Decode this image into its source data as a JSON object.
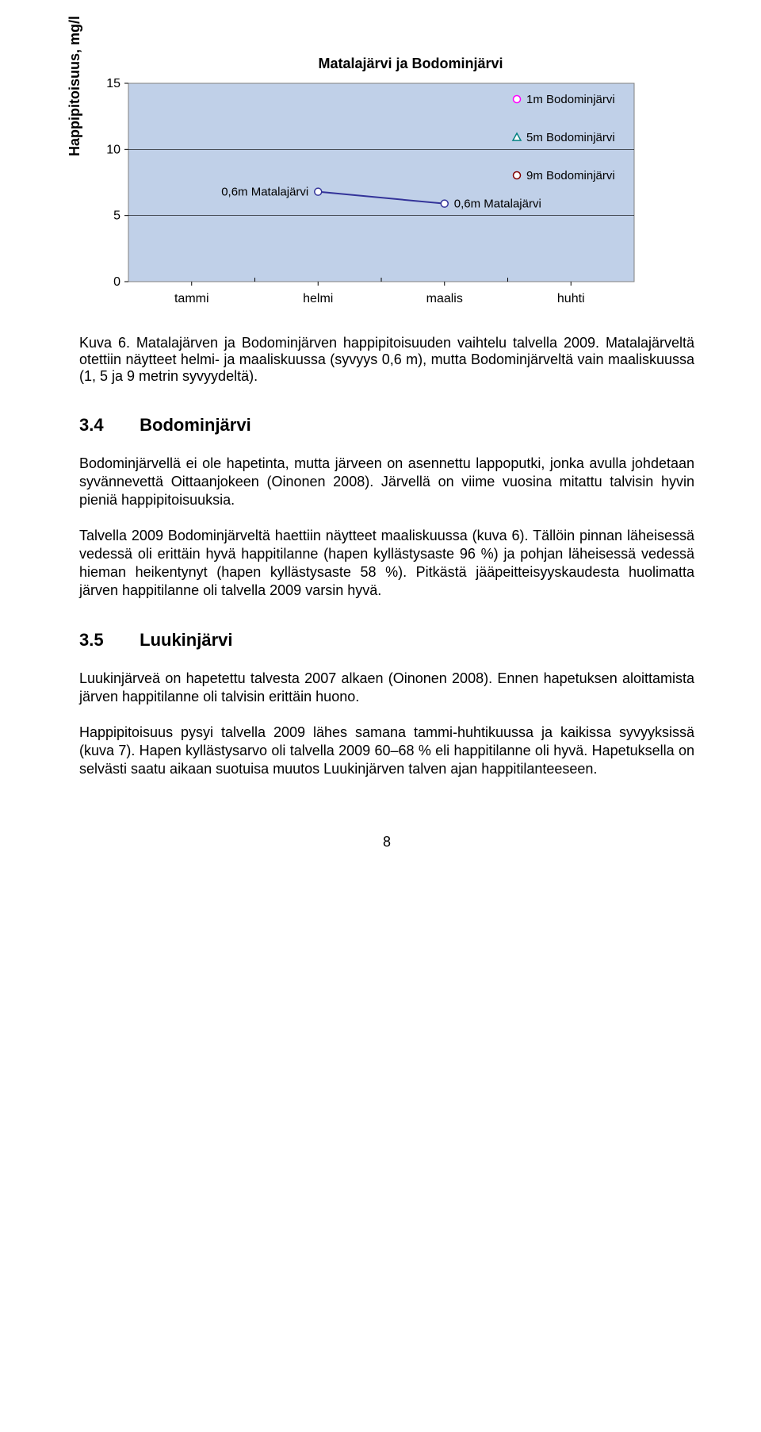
{
  "chart": {
    "title": "Matalajärvi ja Bodominjärvi",
    "ylabel": "Happipitoisuus, mg/l",
    "structure": "line",
    "bg_color": "#c0d0e8",
    "plot_border_color": "#808080",
    "grid_color": "#000000",
    "ylim": [
      0,
      15
    ],
    "yticks": [
      0,
      5,
      10,
      15
    ],
    "xcategories": [
      "tammi",
      "helmi",
      "maalis",
      "huhti"
    ],
    "series": {
      "matalajarvi": {
        "label_series": "0,6m Matalajärvi",
        "color_line": "#333399",
        "color_marker_stroke": "#333399",
        "color_marker_fill": "#ffffff",
        "marker": "circle",
        "points": [
          {
            "x": "helmi",
            "y": 6.8,
            "label": "0,6m Matalajärvi",
            "label_side": "left"
          },
          {
            "x": "maalis",
            "y": 5.9,
            "label": "0,6m Matalajärvi",
            "label_side": "right"
          }
        ]
      }
    },
    "legend": [
      {
        "label": "1m Bodominjärvi",
        "marker": "circle",
        "stroke": "#ff00ff",
        "fill": "#ffffff"
      },
      {
        "label": "5m Bodominjärvi",
        "marker": "triangle",
        "stroke": "#008080",
        "fill": "#ffffff"
      },
      {
        "label": "9m Bodominjärvi",
        "marker": "circle",
        "stroke": "#800000",
        "fill": "#ffffff"
      }
    ],
    "axis_font_size": 16,
    "title_font_size": 18,
    "label_font_size": 15,
    "legend_font_size": 15
  },
  "caption": "Kuva 6. Matalajärven ja Bodominjärven happipitoisuuden vaihtelu talvella 2009. Matalajärveltä otettiin näytteet helmi- ja maaliskuussa (syvyys 0,6 m), mutta Bodominjärveltä vain maaliskuussa (1, 5 ja 9 metrin syvyydeltä).",
  "section34": {
    "num": "3.4",
    "title": "Bodominjärvi",
    "p1": "Bodominjärvellä ei ole hapetinta, mutta järveen on asennettu lappoputki, jonka avulla johdetaan syvännevettä Oittaanjokeen (Oinonen 2008). Järvellä on viime vuosina mitattu talvisin hyvin pieniä happipitoisuuksia.",
    "p2": "Talvella 2009 Bodominjärveltä haettiin näytteet maaliskuussa (kuva 6). Tällöin pinnan läheisessä vedessä oli erittäin hyvä happitilanne (hapen kyllästysaste 96 %) ja pohjan läheisessä vedessä hieman heikentynyt (hapen kyllästysaste 58 %). Pitkästä jääpeitteisyyskaudesta huolimatta järven happitilanne oli talvella 2009 varsin hyvä."
  },
  "section35": {
    "num": "3.5",
    "title": "Luukinjärvi",
    "p1": "Luukinjärveä on hapetettu talvesta 2007 alkaen (Oinonen 2008). Ennen hapetuksen aloittamista järven happitilanne oli talvisin erittäin huono.",
    "p2": "Happipitoisuus pysyi talvella 2009 lähes samana tammi-huhtikuussa ja kaikissa syvyyksissä (kuva 7). Hapen kyllästysarvo oli talvella 2009 60–68 % eli happitilanne oli hyvä. Hapetuksella on selvästi saatu aikaan suotuisa muutos Luukinjärven talven ajan happitilanteeseen."
  },
  "page_number": "8"
}
